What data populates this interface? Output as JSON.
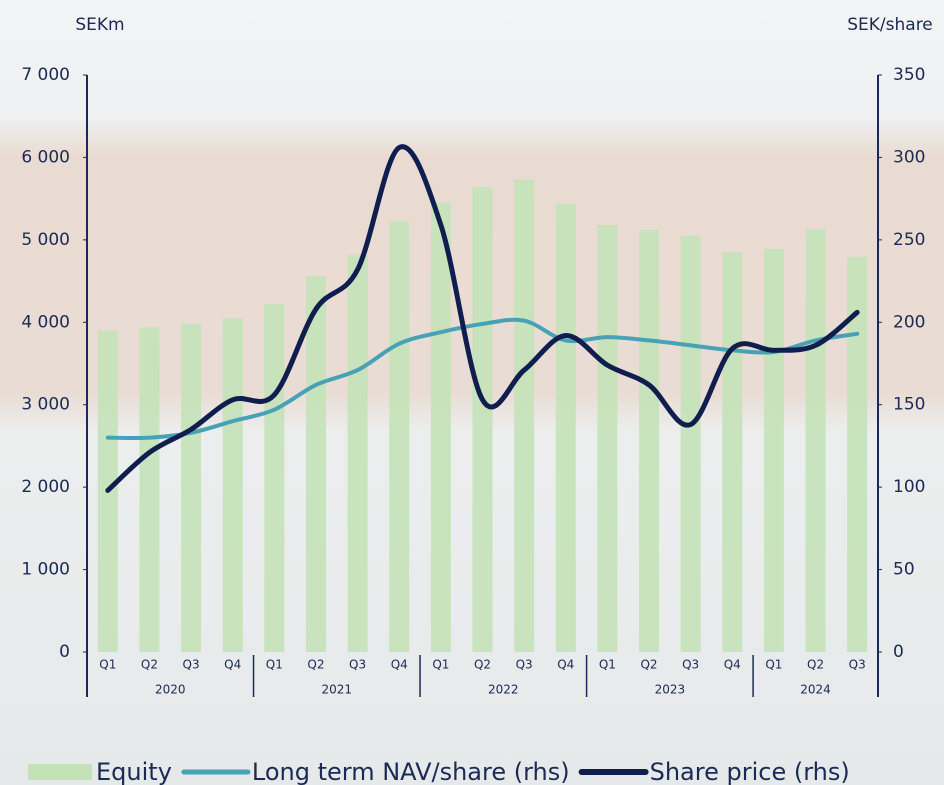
{
  "chart_data": {
    "type": "bar-line",
    "y_axis_label": "SEKm",
    "y2_axis_label": "SEK/share",
    "categories": [
      "Q1",
      "Q2",
      "Q3",
      "Q4",
      "Q1",
      "Q2",
      "Q3",
      "Q4",
      "Q1",
      "Q2",
      "Q3",
      "Q4",
      "Q1",
      "Q2",
      "Q3",
      "Q4",
      "Q1",
      "Q2",
      "Q3"
    ],
    "category_groups": [
      "2020",
      "2021",
      "2022",
      "2023",
      "2024"
    ],
    "series": [
      {
        "name": "Equity",
        "type": "bar",
        "color": "#c4e2b8",
        "values": [
          3900,
          3940,
          3980,
          4050,
          4220,
          4560,
          4820,
          5230,
          5450,
          5640,
          5730,
          5440,
          5180,
          5120,
          5050,
          4850,
          4890,
          5130,
          4790
        ]
      },
      {
        "name": "Long term NAV/share (rhs)",
        "type": "line",
        "axis": "y2",
        "color": "#47a2b6",
        "values": [
          130,
          130,
          133,
          140,
          147,
          162,
          171,
          187,
          194,
          199,
          201,
          189,
          191,
          189,
          186,
          183,
          182,
          189,
          193
        ]
      },
      {
        "name": "Share price (rhs)",
        "type": "line",
        "axis": "y2",
        "color": "#0f1e4e",
        "values": [
          98,
          121,
          135,
          153,
          156,
          208,
          232,
          306,
          259,
          153,
          171,
          192,
          174,
          162,
          138,
          184,
          183,
          186,
          206
        ]
      }
    ],
    "ylim": [
      0,
      7000
    ],
    "yticks": [
      {
        "value": 0,
        "label": "0"
      },
      {
        "value": 1000,
        "label": "1 000"
      },
      {
        "value": 2000,
        "label": "2 000"
      },
      {
        "value": 3000,
        "label": "3 000"
      },
      {
        "value": 4000,
        "label": "4 000"
      },
      {
        "value": 5000,
        "label": "5 000"
      },
      {
        "value": 6000,
        "label": "6 000"
      },
      {
        "value": 7000,
        "label": "7 000"
      }
    ],
    "y2lim": [
      0,
      350
    ],
    "y2ticks": [
      0,
      50,
      100,
      150,
      200,
      250,
      300,
      350
    ]
  }
}
